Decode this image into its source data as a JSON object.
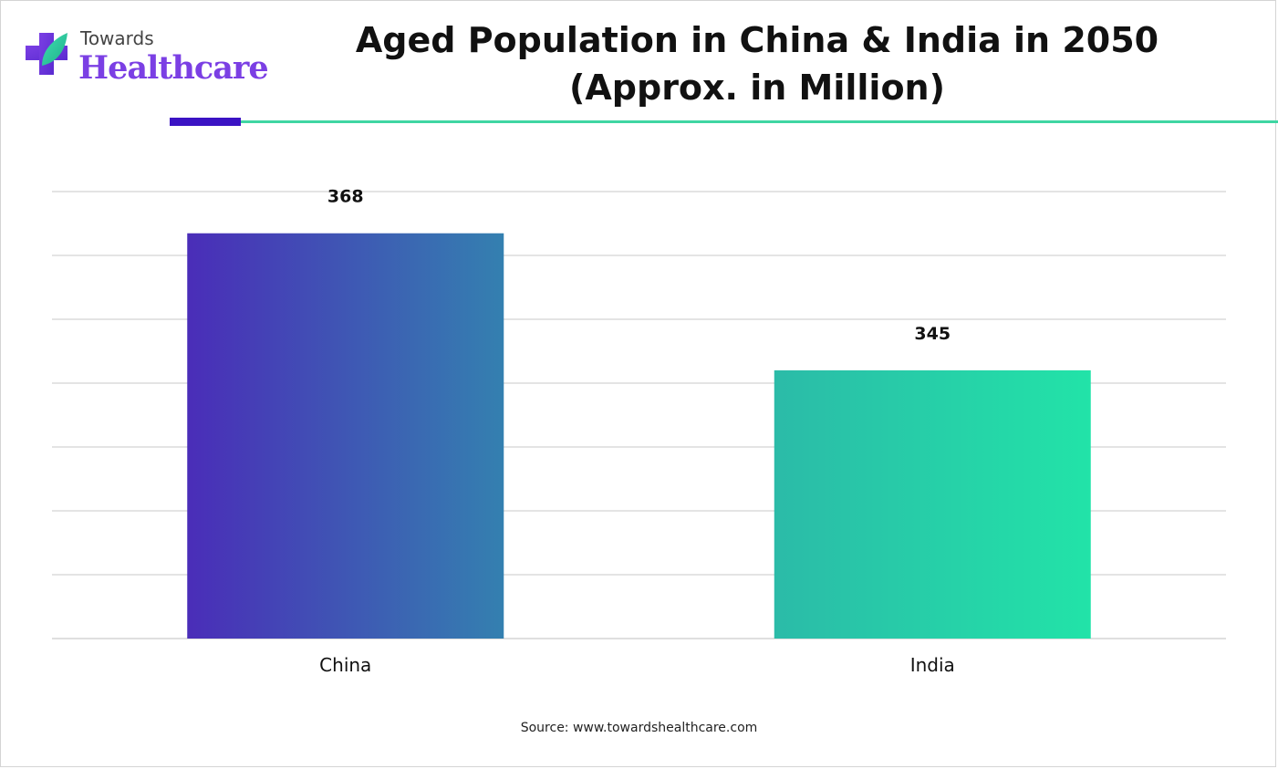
{
  "logo": {
    "line1": "Towards",
    "line2": "Healthcare",
    "icon": "cross-leaf-logo-icon"
  },
  "title_line1": "Aged Population in China & India in 2050",
  "title_line2": "(Approx. in Million)",
  "source": "Source: www.towardshealthcare.com",
  "colors": {
    "china_start": "#4a2db8",
    "china_end": "#3480b0",
    "india_start": "#2bbba8",
    "india_end": "#22e3a8",
    "accent_dark": "#3b13c4",
    "accent_green": "#3fd6a3",
    "brand_purple": "#7b3fe4"
  },
  "chart_data": {
    "type": "bar",
    "categories": [
      "China",
      "India"
    ],
    "values": [
      368,
      345
    ],
    "data_labels": [
      "368",
      "345"
    ],
    "title": "Aged Population in China & India in 2050 (Approx. in Million)",
    "xlabel": "",
    "ylabel": "",
    "ylim": [
      300,
      375
    ],
    "grid": true,
    "legend": "none"
  }
}
